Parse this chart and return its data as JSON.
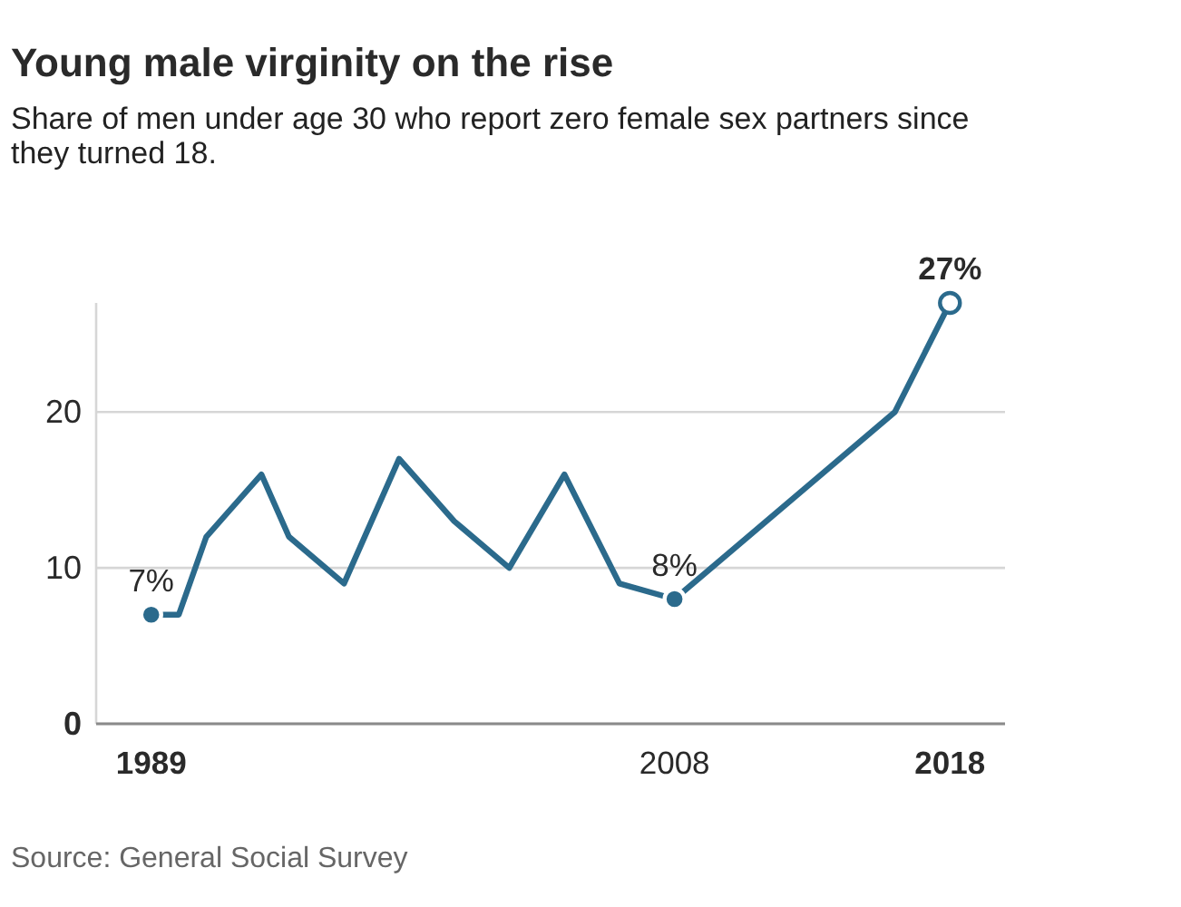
{
  "chart_data": {
    "type": "line",
    "title": "Young male virginity on the rise",
    "subtitle": "Share of men under age 30 who report zero female sex partners since they turned 18.",
    "annotations": [
      "Source: General Social Survey"
    ],
    "x": [
      1989,
      1990,
      1991,
      1993,
      1994,
      1996,
      1998,
      2000,
      2002,
      2004,
      2006,
      2008,
      2016,
      2018
    ],
    "series": [
      {
        "color": "#2b6a8c",
        "values": [
          7,
          7,
          12,
          16,
          12,
          9,
          17,
          13,
          10,
          16,
          9,
          8,
          20,
          27
        ],
        "marker": "none"
      },
      {
        "type": "scatter",
        "x": [
          1989,
          2008,
          2018
        ],
        "color": "#2b6a8c",
        "colors": [
          "#2b6a8c",
          "#2b6a8c",
          "#ffffff"
        ],
        "values": [
          7,
          8,
          27
        ],
        "value_labels": [
          "7%",
          "8%",
          "27%"
        ],
        "marker": "circle"
      }
    ],
    "xlim": [
      1987,
      2020
    ],
    "xticks": [
      1989,
      2008,
      2018
    ],
    "ylim": [
      0,
      27
    ],
    "yticks": [
      0,
      10,
      20
    ],
    "grid": "y"
  }
}
